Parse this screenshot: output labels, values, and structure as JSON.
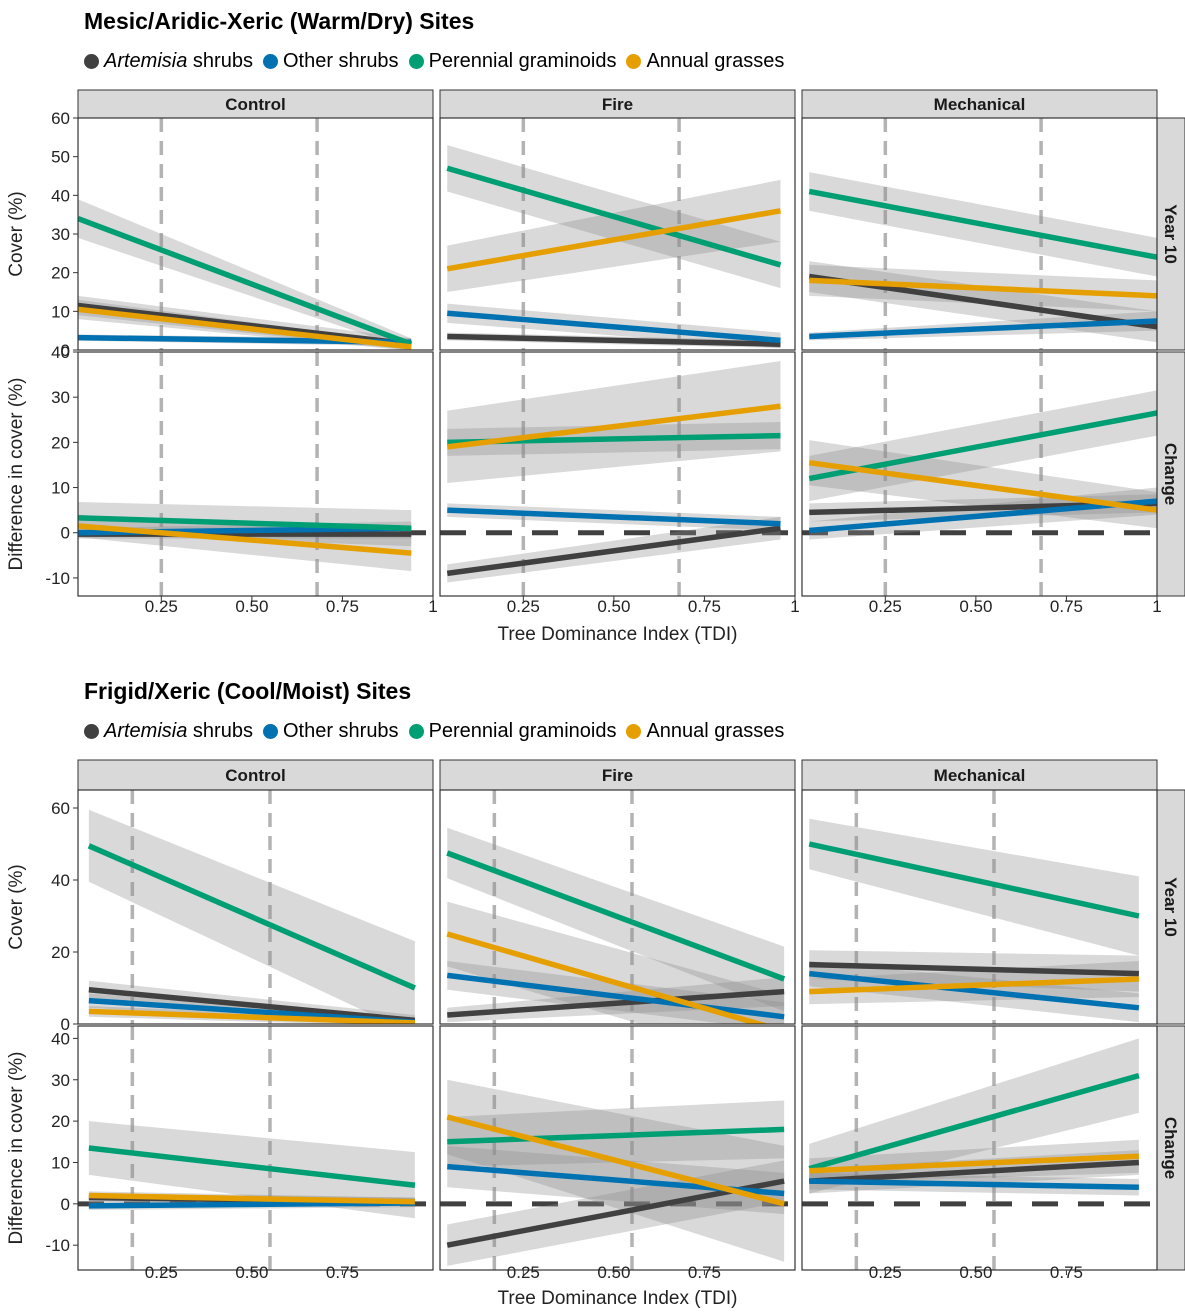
{
  "sections": [
    {
      "title": "Mesic/Aridic-Xeric (Warm/Dry) Sites",
      "legend": [
        {
          "italic": "Artemisia",
          "text": " shrubs",
          "color": "#404040"
        },
        {
          "italic": "",
          "text": "Other shrubs",
          "color": "#0072B2"
        },
        {
          "italic": "",
          "text": "Perennial graminoids",
          "color": "#009E73"
        },
        {
          "italic": "",
          "text": "Annual grasses",
          "color": "#E69F00"
        }
      ]
    },
    {
      "title": "Frigid/Xeric (Cool/Moist) Sites",
      "legend": [
        {
          "italic": "Artemisia",
          "text": " shrubs",
          "color": "#404040"
        },
        {
          "italic": "",
          "text": "Other shrubs",
          "color": "#0072B2"
        },
        {
          "italic": "",
          "text": "Perennial graminoids",
          "color": "#009E73"
        },
        {
          "italic": "",
          "text": "Annual grasses",
          "color": "#E69F00"
        }
      ]
    }
  ],
  "chart_data": [
    {
      "type": "line",
      "title": "Mesic/Aridic-Xeric (Warm/Dry) Sites",
      "xlabel": "Tree Dominance Index (TDI)",
      "columns": [
        "Control",
        "Fire",
        "Mechanical"
      ],
      "rows": [
        "Year 10",
        "Change"
      ],
      "row_ylabels": [
        "Cover (%)",
        "Difference in cover (%)"
      ],
      "xlim": [
        0.02,
        1.0
      ],
      "x_ticks": [
        0.25,
        0.5,
        0.75,
        1
      ],
      "x_tick_labels": [
        "0.25",
        "0.50",
        "0.75",
        "1"
      ],
      "ylims": [
        [
          0,
          60
        ],
        [
          -14,
          40
        ]
      ],
      "y_ticks": [
        [
          0,
          10,
          20,
          30,
          40,
          50,
          60
        ],
        [
          -10,
          0,
          10,
          20,
          30,
          40
        ]
      ],
      "vlines": [
        0.25,
        0.68
      ],
      "series_names": [
        "Artemisia shrubs",
        "Other shrubs",
        "Perennial graminoids",
        "Annual grasses"
      ],
      "series_colors": [
        "#404040",
        "#0072B2",
        "#009E73",
        "#E69F00"
      ],
      "panels": [
        {
          "column": "Control",
          "row": "Year 10",
          "x_range": [
            0.02,
            0.94
          ],
          "hline": null,
          "lines": [
            {
              "series": "Artemisia shrubs",
              "start": 11.5,
              "end": 1.5,
              "band_start": 2.5,
              "band_end": 1.5
            },
            {
              "series": "Other shrubs",
              "start": 3.2,
              "end": 2.0,
              "band_start": 0.8,
              "band_end": 1.0
            },
            {
              "series": "Perennial graminoids",
              "start": 34,
              "end": 1.5,
              "band_start": 5,
              "band_end": 1.5
            },
            {
              "series": "Annual grasses",
              "start": 10.5,
              "end": 0.8,
              "band_start": 2.5,
              "band_end": 1.0
            }
          ]
        },
        {
          "column": "Fire",
          "row": "Year 10",
          "x_range": [
            0.04,
            0.96
          ],
          "hline": null,
          "lines": [
            {
              "series": "Artemisia shrubs",
              "start": 3.5,
              "end": 1.5,
              "band_start": 1.0,
              "band_end": 1.0
            },
            {
              "series": "Other shrubs",
              "start": 9.5,
              "end": 2.5,
              "band_start": 2.5,
              "band_end": 2.0
            },
            {
              "series": "Perennial graminoids",
              "start": 47,
              "end": 22,
              "band_start": 6,
              "band_end": 6
            },
            {
              "series": "Annual grasses",
              "start": 21,
              "end": 36,
              "band_start": 6,
              "band_end": 8
            }
          ]
        },
        {
          "column": "Mechanical",
          "row": "Year 10",
          "x_range": [
            0.04,
            1.0
          ],
          "hline": null,
          "lines": [
            {
              "series": "Artemisia shrubs",
              "start": 19,
              "end": 6,
              "band_start": 4,
              "band_end": 4
            },
            {
              "series": "Other shrubs",
              "start": 3.5,
              "end": 7.5,
              "band_start": 1.0,
              "band_end": 2.5
            },
            {
              "series": "Perennial graminoids",
              "start": 41,
              "end": 24,
              "band_start": 5,
              "band_end": 5
            },
            {
              "series": "Annual grasses",
              "start": 18,
              "end": 14,
              "band_start": 4,
              "band_end": 4
            }
          ]
        },
        {
          "column": "Control",
          "row": "Change",
          "x_range": [
            0.02,
            0.94
          ],
          "hline": 0,
          "lines": [
            {
              "series": "Artemisia shrubs",
              "start": -0.3,
              "end": -0.3,
              "band_start": 1.0,
              "band_end": 1.0
            },
            {
              "series": "Other shrubs",
              "start": 0.0,
              "end": 1.0,
              "band_start": 1.0,
              "band_end": 1.5
            },
            {
              "series": "Perennial graminoids",
              "start": 3.3,
              "end": 1.0,
              "band_start": 3.5,
              "band_end": 4.0
            },
            {
              "series": "Annual grasses",
              "start": 1.5,
              "end": -4.5,
              "band_start": 2.5,
              "band_end": 4.0
            }
          ]
        },
        {
          "column": "Fire",
          "row": "Change",
          "x_range": [
            0.04,
            0.96
          ],
          "hline": 0,
          "lines": [
            {
              "series": "Artemisia shrubs",
              "start": -9,
              "end": 1,
              "band_start": 2.0,
              "band_end": 2.5
            },
            {
              "series": "Other shrubs",
              "start": 5,
              "end": 2,
              "band_start": 1.5,
              "band_end": 1.5
            },
            {
              "series": "Perennial graminoids",
              "start": 20,
              "end": 21.5,
              "band_start": 3.0,
              "band_end": 3.0
            },
            {
              "series": "Annual grasses",
              "start": 19,
              "end": 28,
              "band_start": 8,
              "band_end": 10
            }
          ]
        },
        {
          "column": "Mechanical",
          "row": "Change",
          "x_range": [
            0.04,
            1.0
          ],
          "hline": 0,
          "lines": [
            {
              "series": "Artemisia shrubs",
              "start": 4.5,
              "end": 6.5,
              "band_start": 2.0,
              "band_end": 2.0
            },
            {
              "series": "Other shrubs",
              "start": 0.5,
              "end": 7,
              "band_start": 2.0,
              "band_end": 3.0
            },
            {
              "series": "Perennial graminoids",
              "start": 12,
              "end": 26.5,
              "band_start": 5,
              "band_end": 5
            },
            {
              "series": "Annual grasses",
              "start": 15.5,
              "end": 5,
              "band_start": 5,
              "band_end": 4
            }
          ]
        }
      ]
    },
    {
      "type": "line",
      "title": "Frigid/Xeric (Cool/Moist) Sites",
      "xlabel": "Tree Dominance Index (TDI)",
      "columns": [
        "Control",
        "Fire",
        "Mechanical"
      ],
      "rows": [
        "Year 10",
        "Change"
      ],
      "row_ylabels": [
        "Cover (%)",
        "Difference in cover (%)"
      ],
      "xlim": [
        0.02,
        1.0
      ],
      "x_ticks": [
        0.25,
        0.5,
        0.75
      ],
      "x_tick_labels": [
        "0.25",
        "0.50",
        "0.75"
      ],
      "ylims": [
        [
          0,
          65
        ],
        [
          -16,
          43
        ]
      ],
      "y_ticks": [
        [
          0,
          20,
          40,
          60
        ],
        [
          -10,
          0,
          10,
          20,
          30,
          40
        ]
      ],
      "vlines": [
        0.17,
        0.55
      ],
      "series_names": [
        "Artemisia shrubs",
        "Other shrubs",
        "Perennial graminoids",
        "Annual grasses"
      ],
      "series_colors": [
        "#404040",
        "#0072B2",
        "#009E73",
        "#E69F00"
      ],
      "panels": [
        {
          "column": "Control",
          "row": "Year 10",
          "x_range": [
            0.05,
            0.95
          ],
          "hline": null,
          "lines": [
            {
              "series": "Artemisia shrubs",
              "start": 9.5,
              "end": 1,
              "band_start": 2.5,
              "band_end": 1.5
            },
            {
              "series": "Other shrubs",
              "start": 6.5,
              "end": 0.5,
              "band_start": 2.0,
              "band_end": 1.0
            },
            {
              "series": "Perennial graminoids",
              "start": 49.5,
              "end": 10,
              "band_start": 10,
              "band_end": 13
            },
            {
              "series": "Annual grasses",
              "start": 3.5,
              "end": 0.3,
              "band_start": 1.5,
              "band_end": 1.0
            }
          ]
        },
        {
          "column": "Fire",
          "row": "Year 10",
          "x_range": [
            0.04,
            0.97
          ],
          "hline": null,
          "lines": [
            {
              "series": "Artemisia shrubs",
              "start": 2.5,
              "end": 9,
              "band_start": 2.0,
              "band_end": 4.0
            },
            {
              "series": "Other shrubs",
              "start": 13.5,
              "end": 2,
              "band_start": 4.0,
              "band_end": 4.0
            },
            {
              "series": "Perennial graminoids",
              "start": 47.5,
              "end": 12.5,
              "band_start": 7,
              "band_end": 9
            },
            {
              "series": "Annual grasses",
              "start": 25,
              "end": -2,
              "band_start": 9,
              "band_end": 10
            }
          ]
        },
        {
          "column": "Mechanical",
          "row": "Year 10",
          "x_range": [
            0.04,
            0.95
          ],
          "hline": null,
          "lines": [
            {
              "series": "Artemisia shrubs",
              "start": 16.5,
              "end": 14,
              "band_start": 4,
              "band_end": 5
            },
            {
              "series": "Other shrubs",
              "start": 14,
              "end": 4.5,
              "band_start": 3.5,
              "band_end": 4.0
            },
            {
              "series": "Perennial graminoids",
              "start": 50,
              "end": 30,
              "band_start": 7,
              "band_end": 11
            },
            {
              "series": "Annual grasses",
              "start": 9,
              "end": 12.5,
              "band_start": 3.5,
              "band_end": 5
            }
          ]
        },
        {
          "column": "Control",
          "row": "Change",
          "x_range": [
            0.05,
            0.95
          ],
          "hline": 0,
          "lines": [
            {
              "series": "Artemisia shrubs",
              "start": 1.5,
              "end": 0.5,
              "band_start": 1.0,
              "band_end": 1.0
            },
            {
              "series": "Other shrubs",
              "start": -0.5,
              "end": 0.2,
              "band_start": 1.0,
              "band_end": 1.0
            },
            {
              "series": "Perennial graminoids",
              "start": 13.5,
              "end": 4.5,
              "band_start": 6.5,
              "band_end": 8
            },
            {
              "series": "Annual grasses",
              "start": 2,
              "end": 0.5,
              "band_start": 1.0,
              "band_end": 1.0
            }
          ]
        },
        {
          "column": "Fire",
          "row": "Change",
          "x_range": [
            0.04,
            0.97
          ],
          "hline": 0,
          "lines": [
            {
              "series": "Artemisia shrubs",
              "start": -10,
              "end": 5.5,
              "band_start": 5,
              "band_end": 5
            },
            {
              "series": "Other shrubs",
              "start": 9,
              "end": 2.5,
              "band_start": 5,
              "band_end": 5
            },
            {
              "series": "Perennial graminoids",
              "start": 15,
              "end": 18,
              "band_start": 6,
              "band_end": 7
            },
            {
              "series": "Annual grasses",
              "start": 21,
              "end": 0,
              "band_start": 9,
              "band_end": 14
            }
          ]
        },
        {
          "column": "Mechanical",
          "row": "Change",
          "x_range": [
            0.04,
            0.95
          ],
          "hline": 0,
          "lines": [
            {
              "series": "Artemisia shrubs",
              "start": 5.5,
              "end": 10,
              "band_start": 3,
              "band_end": 3
            },
            {
              "series": "Other shrubs",
              "start": 5.5,
              "end": 4,
              "band_start": 2,
              "band_end": 2
            },
            {
              "series": "Perennial graminoids",
              "start": 8.5,
              "end": 31,
              "band_start": 6,
              "band_end": 9
            },
            {
              "series": "Annual grasses",
              "start": 8,
              "end": 11.5,
              "band_start": 3,
              "band_end": 4
            }
          ]
        }
      ]
    }
  ]
}
